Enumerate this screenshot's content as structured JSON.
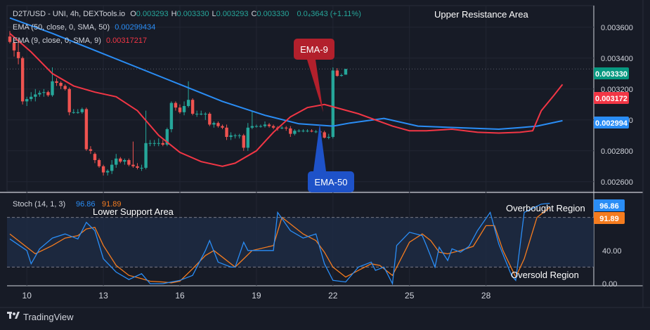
{
  "header": {
    "symbol": "D2T/USD - UNI, 4h, DEXTools.io",
    "ohlc": [
      {
        "k": "O",
        "v": "0.003293"
      },
      {
        "k": "H",
        "v": "0.003330"
      },
      {
        "k": "L",
        "v": "0.003293"
      },
      {
        "k": "C",
        "v": "0.003330"
      }
    ],
    "change": "0.0₄3643 (+1.11%)",
    "ema50_label": "EMA (50, close, 0, SMA, 50)",
    "ema50_value": "0.00299434",
    "ema9_label": "EMA (9, close, 0, SMA, 9)",
    "ema9_value": "0.00317217"
  },
  "annotations": {
    "upper_resistance": "Upper Resistance Area",
    "lower_support": "Lower Support Area",
    "overbought": "Overbought Region",
    "oversold": "Oversold Region",
    "ema9_callout": "EMA-9",
    "ema50_callout": "EMA-50"
  },
  "stoch": {
    "label": "Stoch (14, 1, 3)",
    "k_value": "96.86",
    "d_value": "91.89"
  },
  "price_badges": {
    "last": "0.003330",
    "ema9": "0.003172",
    "ema50": "0.002994"
  },
  "branding": "TradingView",
  "colors": {
    "bg": "#171b26",
    "up": "#26a69a",
    "down": "#ef5350",
    "ema50": "#2a8df5",
    "ema9": "#f23645",
    "stoch_k": "#2a8df5",
    "stoch_d": "#f57c1f",
    "band": "#1e2c45",
    "ema9_callout": "#b2202c",
    "ema50_callout": "#1e52c8"
  },
  "chart_data": [
    {
      "type": "candlestick",
      "price_axis_ticks": [
        "0.002600",
        "0.002800",
        "0.003000",
        "0.003200",
        "0.003400",
        "0.003600"
      ],
      "ylim": [
        0.00254,
        0.00374
      ],
      "x_ticks": [
        {
          "label": "10",
          "at": 4
        },
        {
          "label": "13",
          "at": 22
        },
        {
          "label": "16",
          "at": 40
        },
        {
          "label": "19",
          "at": 58
        },
        {
          "label": "22",
          "at": 76
        },
        {
          "label": "25",
          "at": 94
        },
        {
          "label": "28",
          "at": 112
        }
      ],
      "candles": [
        [
          0.00354,
          0.003575,
          0.003495,
          0.003505
        ],
        [
          0.0035,
          0.00351,
          0.00341,
          0.00345
        ],
        [
          0.00344,
          0.00352,
          0.00336,
          0.0034
        ],
        [
          0.0034,
          0.00341,
          0.0031,
          0.00312
        ],
        [
          0.00312,
          0.00315,
          0.00309,
          0.003135
        ],
        [
          0.003135,
          0.00318,
          0.00312,
          0.00315
        ],
        [
          0.00315,
          0.0032,
          0.00312,
          0.003165
        ],
        [
          0.003165,
          0.00319,
          0.00315,
          0.003175
        ],
        [
          0.003175,
          0.0032,
          0.00315,
          0.00318
        ],
        [
          0.00318,
          0.00319,
          0.00315,
          0.00316
        ],
        [
          0.00316,
          0.00334,
          0.00315,
          0.00325
        ],
        [
          0.00325,
          0.00327,
          0.00322,
          0.00324
        ],
        [
          0.00324,
          0.00325,
          0.0032,
          0.00322
        ],
        [
          0.00322,
          0.00323,
          0.00319,
          0.0032
        ],
        [
          0.0032,
          0.00321,
          0.00303,
          0.00305
        ],
        [
          0.00305,
          0.00307,
          0.00304,
          0.00305
        ],
        [
          0.00305,
          0.00307,
          0.00304,
          0.00305
        ],
        [
          0.00305,
          0.00308,
          0.00304,
          0.00307
        ],
        [
          0.00307,
          0.00308,
          0.0028,
          0.00281
        ],
        [
          0.00281,
          0.00283,
          0.00278,
          0.0028
        ],
        [
          0.00278,
          0.00279,
          0.00272,
          0.00274
        ],
        [
          0.00274,
          0.00275,
          0.00269,
          0.0027
        ],
        [
          0.0027,
          0.00271,
          0.00264,
          0.00266
        ],
        [
          0.00266,
          0.00268,
          0.00264,
          0.00267
        ],
        [
          0.00267,
          0.00274,
          0.00265,
          0.00271
        ],
        [
          0.00271,
          0.00278,
          0.00269,
          0.00275
        ],
        [
          0.00275,
          0.00276,
          0.00272,
          0.00273
        ],
        [
          0.00273,
          0.00275,
          0.00271,
          0.00274
        ],
        [
          0.00274,
          0.00275,
          0.0027,
          0.00271
        ],
        [
          0.00271,
          0.00286,
          0.00269,
          0.0027
        ],
        [
          0.0027,
          0.00272,
          0.00268,
          0.00269
        ],
        [
          0.00269,
          0.00271,
          0.00267,
          0.00269
        ],
        [
          0.00269,
          0.00306,
          0.00268,
          0.00285
        ],
        [
          0.00285,
          0.00287,
          0.00283,
          0.00285
        ],
        [
          0.00285,
          0.00287,
          0.00283,
          0.00285
        ],
        [
          0.00285,
          0.00288,
          0.00283,
          0.00285
        ],
        [
          0.00285,
          0.00287,
          0.00283,
          0.00284
        ],
        [
          0.00284,
          0.00295,
          0.00283,
          0.00294
        ],
        [
          0.00294,
          0.00312,
          0.00292,
          0.00311
        ],
        [
          0.00311,
          0.00312,
          0.00306,
          0.00308
        ],
        [
          0.00308,
          0.0031,
          0.00304,
          0.00305
        ],
        [
          0.00305,
          0.00312,
          0.00303,
          0.00309
        ],
        [
          0.00309,
          0.00325,
          0.00308,
          0.00313
        ],
        [
          0.00313,
          0.00314,
          0.00303,
          0.00304
        ],
        [
          0.00304,
          0.00306,
          0.00302,
          0.00304
        ],
        [
          0.00304,
          0.00306,
          0.00303,
          0.00304
        ],
        [
          0.00304,
          0.00305,
          0.003,
          0.00304
        ],
        [
          0.00304,
          0.00305,
          0.00296,
          0.00297
        ],
        [
          0.00297,
          0.00299,
          0.00295,
          0.00298
        ],
        [
          0.00298,
          0.00299,
          0.00295,
          0.00296
        ],
        [
          0.00296,
          0.00297,
          0.00294,
          0.00295
        ],
        [
          0.00295,
          0.00297,
          0.00287,
          0.00289
        ],
        [
          0.00289,
          0.00292,
          0.00287,
          0.0029
        ],
        [
          0.0029,
          0.00291,
          0.00288,
          0.0029
        ],
        [
          0.0029,
          0.00291,
          0.00288,
          0.0029
        ],
        [
          0.0029,
          0.00291,
          0.0028,
          0.00282
        ],
        [
          0.00282,
          0.00298,
          0.0028,
          0.00295
        ],
        [
          0.00295,
          0.00306,
          0.00294,
          0.00296
        ],
        [
          0.00296,
          0.00297,
          0.00295,
          0.00296
        ],
        [
          0.00296,
          0.00297,
          0.00295,
          0.00296
        ],
        [
          0.00296,
          0.00299,
          0.00295,
          0.00297
        ],
        [
          0.00297,
          0.00298,
          0.00295,
          0.00296
        ],
        [
          0.00296,
          0.00297,
          0.00294,
          0.00295
        ],
        [
          0.00295,
          0.00296,
          0.00293,
          0.002945
        ],
        [
          0.002945,
          0.00296,
          0.00294,
          0.00295
        ],
        [
          0.00295,
          0.00296,
          0.00293,
          0.002945
        ],
        [
          0.002945,
          0.00296,
          0.00289,
          0.00291
        ],
        [
          0.00291,
          0.00294,
          0.0029,
          0.00293
        ],
        [
          0.00293,
          0.00294,
          0.00292,
          0.00293
        ],
        [
          0.00293,
          0.00294,
          0.00292,
          0.00293
        ],
        [
          0.00293,
          0.00294,
          0.00292,
          0.00293
        ],
        [
          0.00293,
          0.00294,
          0.00292,
          0.002925
        ],
        [
          0.002925,
          0.002935,
          0.002915,
          0.002925
        ],
        [
          0.002925,
          0.002935,
          0.002915,
          0.00292
        ],
        [
          0.00292,
          0.00293,
          0.00288,
          0.002885
        ],
        [
          0.002885,
          0.00291,
          0.002875,
          0.00289
        ],
        [
          0.00289,
          0.00334,
          0.00288,
          0.00332
        ],
        [
          0.00332,
          0.003335,
          0.00328,
          0.003285
        ],
        [
          0.003285,
          0.0033,
          0.00328,
          0.00329
        ],
        [
          0.003293,
          0.00333,
          0.003293,
          0.00333
        ]
      ],
      "ema50_series": [
        [
          0,
          0.00366
        ],
        [
          10,
          0.00356
        ],
        [
          20,
          0.00345
        ],
        [
          30,
          0.00334
        ],
        [
          40,
          0.00323
        ],
        [
          50,
          0.00312
        ],
        [
          60,
          0.00303
        ],
        [
          68,
          0.002975
        ],
        [
          76,
          0.00296
        ],
        [
          80,
          0.00298
        ],
        [
          88,
          0.00301
        ],
        [
          96,
          0.00296
        ],
        [
          105,
          0.00295
        ],
        [
          115,
          0.00294
        ],
        [
          120,
          0.00295
        ],
        [
          124,
          0.00296
        ],
        [
          130,
          0.002995
        ]
      ],
      "ema9_series": [
        [
          0,
          0.00356
        ],
        [
          5,
          0.00344
        ],
        [
          10,
          0.0033
        ],
        [
          15,
          0.00322
        ],
        [
          20,
          0.00318
        ],
        [
          25,
          0.00315
        ],
        [
          30,
          0.00306
        ],
        [
          35,
          0.0029
        ],
        [
          40,
          0.00279
        ],
        [
          45,
          0.00273
        ],
        [
          50,
          0.0027
        ],
        [
          53,
          0.00272
        ],
        [
          58,
          0.0028
        ],
        [
          62,
          0.00292
        ],
        [
          66,
          0.00302
        ],
        [
          70,
          0.00308
        ],
        [
          74,
          0.0031
        ],
        [
          78,
          0.00307
        ],
        [
          82,
          0.00304
        ],
        [
          86,
          0.003
        ],
        [
          90,
          0.00296
        ],
        [
          94,
          0.00293
        ],
        [
          98,
          0.00293
        ],
        [
          104,
          0.00294
        ],
        [
          110,
          0.00292
        ],
        [
          115,
          0.002915
        ],
        [
          120,
          0.00292
        ],
        [
          123,
          0.00293
        ],
        [
          125,
          0.00306
        ],
        [
          128,
          0.00316
        ],
        [
          130,
          0.00323
        ]
      ]
    },
    {
      "type": "line",
      "title": "Stoch (14, 1, 3)",
      "ylim": [
        0,
        100
      ],
      "y_ticks": [
        "0.00",
        "40.00"
      ],
      "band": [
        20,
        80
      ],
      "series": [
        {
          "name": "96.86",
          "values": [
            [
              0,
              54
            ],
            [
              4,
              40
            ],
            [
              5,
              24
            ],
            [
              7,
              42
            ],
            [
              10,
              55
            ],
            [
              13,
              60
            ],
            [
              16,
              54
            ],
            [
              18,
              74
            ],
            [
              20,
              64
            ],
            [
              22,
              30
            ],
            [
              25,
              14
            ],
            [
              28,
              5
            ],
            [
              31,
              12
            ],
            [
              33,
              0
            ],
            [
              36,
              0
            ],
            [
              38,
              2
            ],
            [
              40,
              4
            ],
            [
              43,
              10
            ],
            [
              46,
              40
            ],
            [
              47,
              52
            ],
            [
              49,
              26
            ],
            [
              52,
              20
            ],
            [
              53,
              20
            ],
            [
              55,
              50
            ],
            [
              56,
              40
            ],
            [
              58,
              40
            ],
            [
              62,
              40
            ],
            [
              63,
              86
            ],
            [
              66,
              64
            ],
            [
              69,
              55
            ],
            [
              72,
              60
            ],
            [
              74,
              24
            ],
            [
              76,
              4
            ],
            [
              79,
              2
            ],
            [
              82,
              20
            ],
            [
              85,
              26
            ],
            [
              86,
              16
            ],
            [
              88,
              20
            ],
            [
              90,
              0
            ],
            [
              91,
              46
            ],
            [
              94,
              62
            ],
            [
              97,
              58
            ],
            [
              98,
              46
            ],
            [
              100,
              20
            ],
            [
              101,
              44
            ],
            [
              103,
              28
            ],
            [
              104,
              42
            ],
            [
              106,
              38
            ],
            [
              108,
              45
            ],
            [
              110,
              64
            ],
            [
              113,
              86
            ],
            [
              115,
              48
            ],
            [
              118,
              10
            ],
            [
              119,
              4
            ],
            [
              121,
              86
            ],
            [
              125,
              96
            ],
            [
              127,
              97
            ]
          ]
        },
        {
          "name": "91.89",
          "values": [
            [
              0,
              60
            ],
            [
              4,
              44
            ],
            [
              6,
              36
            ],
            [
              10,
              46
            ],
            [
              13,
              55
            ],
            [
              16,
              58
            ],
            [
              18,
              66
            ],
            [
              20,
              68
            ],
            [
              22,
              46
            ],
            [
              25,
              22
            ],
            [
              28,
              10
            ],
            [
              31,
              6
            ],
            [
              33,
              3
            ],
            [
              36,
              2
            ],
            [
              38,
              1
            ],
            [
              40,
              3
            ],
            [
              43,
              18
            ],
            [
              46,
              34
            ],
            [
              48,
              40
            ],
            [
              50,
              32
            ],
            [
              53,
              20
            ],
            [
              55,
              30
            ],
            [
              57,
              40
            ],
            [
              62,
              46
            ],
            [
              64,
              80
            ],
            [
              66,
              72
            ],
            [
              69,
              60
            ],
            [
              72,
              52
            ],
            [
              74,
              38
            ],
            [
              76,
              20
            ],
            [
              79,
              8
            ],
            [
              82,
              16
            ],
            [
              85,
              24
            ],
            [
              87,
              22
            ],
            [
              90,
              10
            ],
            [
              92,
              30
            ],
            [
              94,
              50
            ],
            [
              97,
              60
            ],
            [
              99,
              52
            ],
            [
              101,
              38
            ],
            [
              103,
              36
            ],
            [
              106,
              40
            ],
            [
              109,
              45
            ],
            [
              112,
              70
            ],
            [
              114,
              70
            ],
            [
              116,
              40
            ],
            [
              119,
              8
            ],
            [
              121,
              30
            ],
            [
              124,
              80
            ],
            [
              127,
              92
            ]
          ]
        }
      ]
    }
  ]
}
